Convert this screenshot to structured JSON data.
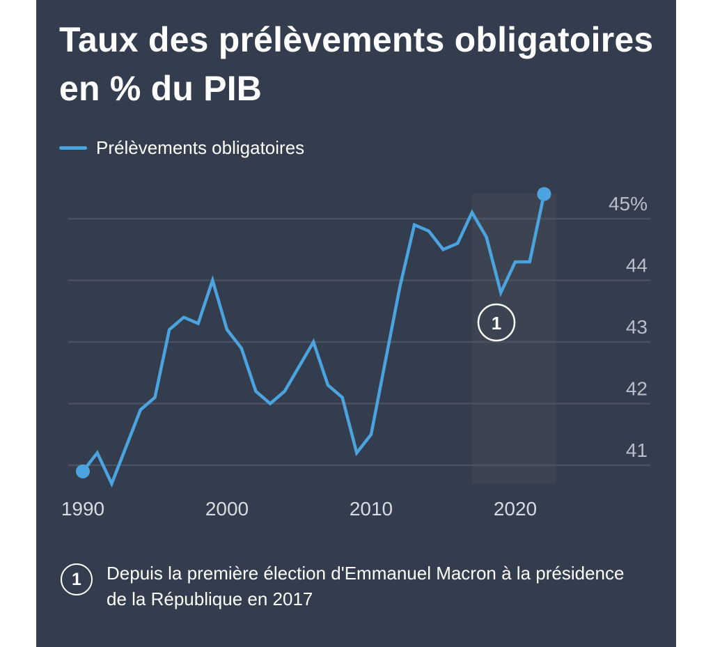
{
  "title": "Taux des prélèvements obligatoires en % du PIB",
  "legend": {
    "label": "Prélèvements obligatoires",
    "icon": "legend-line-swatch"
  },
  "colors": {
    "background": "#333d4d",
    "line": "#4ba3df",
    "grid": "#4a5261",
    "highlight": "#3d4451",
    "text": "#ffffff",
    "axis_text": "#b9bec7"
  },
  "annotation": {
    "marker": "1",
    "year_start": 2017,
    "year_end": 2022
  },
  "footnote": {
    "marker": "1",
    "text": "Depuis la première élection d'Emmanuel Macron à la présidence de la République en 2017"
  },
  "chart_data": {
    "type": "line",
    "title": "Taux des prélèvements obligatoires en % du PIB",
    "xlabel": "",
    "ylabel": "",
    "x": [
      1990,
      1991,
      1992,
      1993,
      1994,
      1995,
      1996,
      1997,
      1998,
      1999,
      2000,
      2001,
      2002,
      2003,
      2004,
      2005,
      2006,
      2007,
      2008,
      2009,
      2010,
      2011,
      2012,
      2013,
      2014,
      2015,
      2016,
      2017,
      2018,
      2019,
      2020,
      2021,
      2022
    ],
    "series": [
      {
        "name": "Prélèvements obligatoires",
        "values": [
          40.9,
          41.2,
          40.7,
          41.3,
          41.9,
          42.1,
          43.2,
          43.4,
          43.3,
          44.0,
          43.2,
          42.9,
          42.2,
          42.0,
          42.2,
          42.6,
          43.0,
          42.3,
          42.1,
          41.2,
          41.5,
          42.7,
          43.9,
          44.9,
          44.8,
          44.5,
          44.6,
          45.1,
          44.7,
          43.8,
          44.3,
          44.3,
          45.4
        ]
      }
    ],
    "x_ticks": [
      1990,
      2000,
      2010,
      2020
    ],
    "x_tick_labels": [
      "1990",
      "2000",
      "2010",
      "2020"
    ],
    "y_ticks": [
      41,
      42,
      43,
      44,
      45
    ],
    "y_tick_labels": [
      "41",
      "42",
      "43",
      "44",
      "45%"
    ],
    "xlim": [
      1990,
      2022
    ],
    "ylim": [
      40.7,
      45.4
    ],
    "grid": true,
    "y_axis_position": "right",
    "legend_position": "top-left",
    "highlight_range": [
      2017,
      2022
    ],
    "annotations": [
      {
        "label": "1",
        "x": 2018.5,
        "near": "2019 dip"
      }
    ],
    "endpoint_markers": [
      1990,
      2022
    ]
  }
}
